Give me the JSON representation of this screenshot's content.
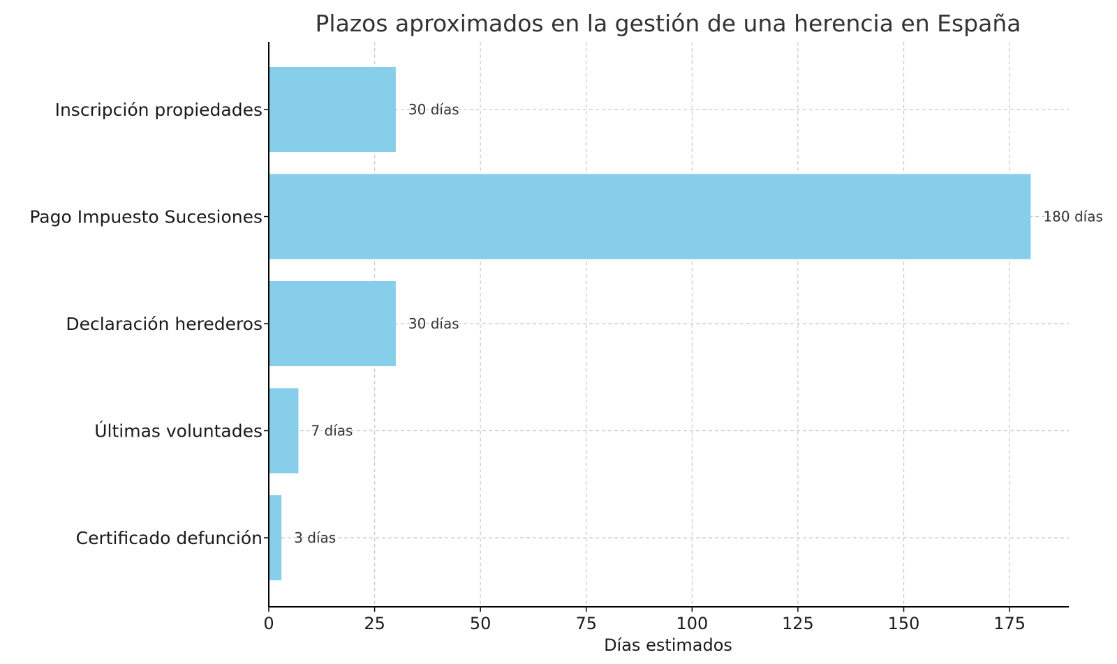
{
  "chart_data": {
    "type": "bar",
    "orientation": "horizontal",
    "title": "Plazos aproximados en la gestión de una herencia en España",
    "xlabel": "Días estimados",
    "ylabel": "",
    "categories": [
      "Certificado defunción",
      "Últimas voluntades",
      "Declaración herederos",
      "Pago Impuesto Sucesiones",
      "Inscripción propiedades"
    ],
    "values": [
      3,
      7,
      30,
      180,
      30
    ],
    "data_labels": [
      "3 días",
      "7 días",
      "30 días",
      "180 días",
      "30 días"
    ],
    "xlim": [
      0,
      189
    ],
    "xticks": [
      0,
      25,
      50,
      75,
      100,
      125,
      150,
      175
    ],
    "grid": true,
    "bar_color": "#87ceeb"
  }
}
